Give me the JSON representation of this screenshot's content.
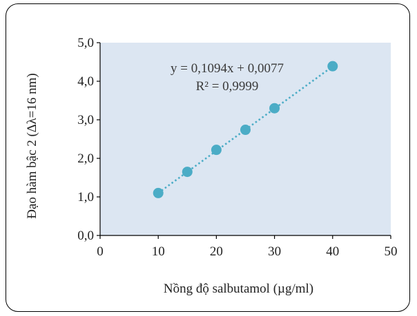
{
  "chart_data": {
    "type": "scatter",
    "x": [
      10,
      15,
      20,
      25,
      30,
      40
    ],
    "y": [
      1.1,
      1.65,
      2.22,
      2.74,
      3.3,
      4.39
    ],
    "xlabel": "Nồng độ salbutamol (µg/ml)",
    "ylabel": "Đạo hàm bậc 2 (∆λ=16 nm)",
    "xlim": [
      0,
      50
    ],
    "ylim": [
      0,
      5
    ],
    "xticks": [
      0,
      10,
      20,
      30,
      40,
      50
    ],
    "yticks": [
      0,
      1,
      2,
      3,
      4,
      5
    ],
    "xtick_labels": [
      "0",
      "10",
      "20",
      "30",
      "40",
      "50"
    ],
    "ytick_labels": [
      "0,0",
      "1,0",
      "2,0",
      "3,0",
      "4,0",
      "5,0"
    ],
    "trendline": {
      "type": "linear",
      "slope": 0.1094,
      "intercept": 0.0077,
      "x_range": [
        10,
        40
      ],
      "style": "dotted",
      "equation": "y = 0,1094x + 0,0077",
      "r_squared": "R² = 0,9999"
    },
    "grid": false,
    "colors": {
      "plot_background": "#dce6f2",
      "marker": "#4bacc6",
      "trendline": "#4bacc6",
      "axis": "#000000"
    }
  }
}
